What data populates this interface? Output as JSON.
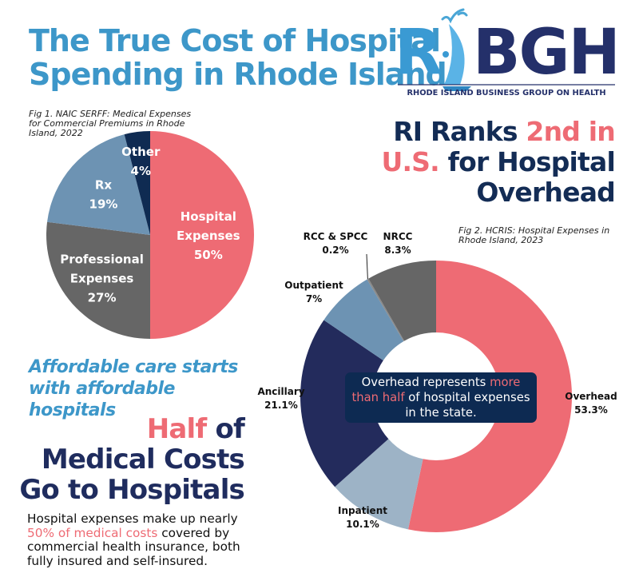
{
  "header": {
    "title_line1": "The True Cost of Hospital",
    "title_line2": "Spending in Rhode Island"
  },
  "logo": {
    "letters_light": "RI",
    "letters_dark": "BGH",
    "subtitle": "RHODE ISLAND BUSINESS GROUP ON HEALTH"
  },
  "rank_heading": {
    "part1": "RI Ranks ",
    "accent": "2nd in U.S.",
    "part2": " for Hospital Overhead",
    "line1_dark": "RI Ranks ",
    "line1_accent": "2nd in",
    "line2_accent": "U.S.",
    "line2_dark": " for Hospital",
    "line3_dark": "Overhead"
  },
  "tagline": "Affordable care starts with affordable hospitals",
  "half_heading": {
    "accent": "Half",
    "line1_rest": " of",
    "line2": "Medical Costs",
    "line3": "Go to Hospitals"
  },
  "body_text": {
    "part1": "Hospital expenses make up nearly ",
    "accent": "50% of medical costs",
    "part2": " covered by commercial health insurance, both fully insured and self-insured."
  },
  "callout": {
    "part1": "Overhead represents ",
    "accent": "more than half",
    "part2": " of hospital expenses in the state."
  },
  "colors": {
    "title_blue": "#3d97c9",
    "navy": "#132c55",
    "accent_pink": "#ee6b74",
    "gray": "#666666",
    "steel_blue": "#6d93b3",
    "light_steel": "#9db3c6",
    "dark_navy": "#232b5c",
    "other_navy": "#0f2b52"
  },
  "chart_data": [
    {
      "type": "pie",
      "title": "Fig 1. NAIC SERFF: Medical Expenses for Commercial Premiums in Rhode Island, 2022",
      "slices": [
        {
          "label": "Hospital Expenses",
          "value": 50,
          "display": "50%",
          "color": "#ee6b74"
        },
        {
          "label": "Professional Expenses",
          "value": 27,
          "display": "27%",
          "color": "#666666"
        },
        {
          "label": "Rx",
          "value": 19,
          "display": "19%",
          "color": "#6d93b3"
        },
        {
          "label": "Other",
          "value": 4,
          "display": "4%",
          "color": "#0f2b52"
        }
      ],
      "start": "12 o'clock",
      "direction": "clockwise",
      "labels": "inside"
    },
    {
      "type": "pie",
      "subtype": "donut",
      "title": "Fig 2. HCRIS: Hospital Expenses in Rhode Island, 2023",
      "slices": [
        {
          "label": "Overhead",
          "value": 53.3,
          "display": "53.3%",
          "color": "#ee6b74"
        },
        {
          "label": "Inpatient",
          "value": 10.1,
          "display": "10.1%",
          "color": "#9db3c6"
        },
        {
          "label": "Ancillary",
          "value": 21.1,
          "display": "21.1%",
          "color": "#232b5c"
        },
        {
          "label": "Outpatient",
          "value": 7,
          "display": "7%",
          "color": "#6d93b3"
        },
        {
          "label": "RCC & SPCC",
          "value": 0.2,
          "display": "0.2%",
          "color": "#8a8a8a"
        },
        {
          "label": "NRCC",
          "value": 8.3,
          "display": "8.3%",
          "color": "#666666"
        }
      ],
      "start": "12 o'clock",
      "direction": "clockwise",
      "labels": "outside"
    }
  ]
}
